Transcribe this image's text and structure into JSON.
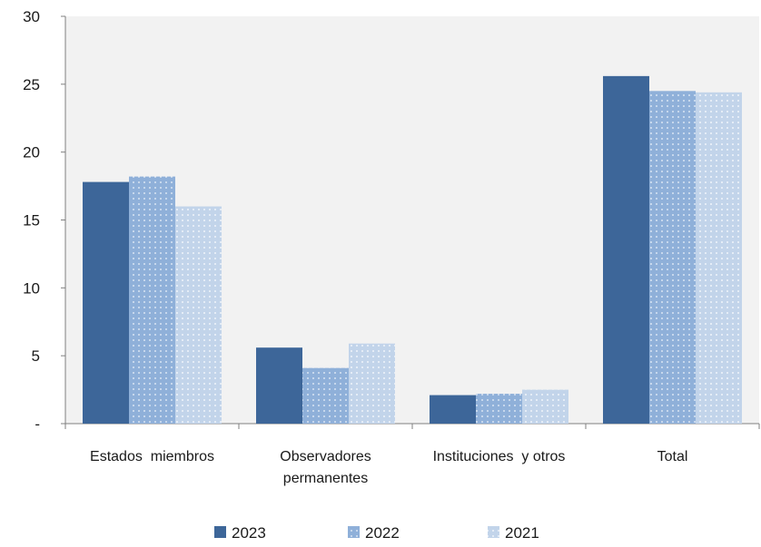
{
  "chart_data": {
    "type": "bar",
    "title": "",
    "xlabel": "",
    "ylabel": "",
    "categories": [
      [
        "Estados  miembros"
      ],
      [
        "Observadores",
        "permanentes"
      ],
      [
        "Instituciones  y otros"
      ],
      [
        "Total"
      ]
    ],
    "series": [
      {
        "name": "2023",
        "values": [
          17.8,
          5.6,
          2.1,
          25.6
        ],
        "color": "#3d6699",
        "pattern": "solid"
      },
      {
        "name": "2022",
        "values": [
          18.2,
          4.1,
          2.2,
          24.5
        ],
        "color": "#8fb0d9",
        "pattern": "dots"
      },
      {
        "name": "2021",
        "values": [
          16.0,
          5.9,
          2.5,
          24.4
        ],
        "color": "#c2d4ea",
        "pattern": "dots-light"
      }
    ],
    "ylim": [
      0,
      30
    ],
    "yticks": [
      {
        "value": 0,
        "label": "-"
      },
      {
        "value": 5,
        "label": "5"
      },
      {
        "value": 10,
        "label": "10"
      },
      {
        "value": 15,
        "label": "15"
      },
      {
        "value": 20,
        "label": "20"
      },
      {
        "value": 25,
        "label": "25"
      },
      {
        "value": 30,
        "label": "30"
      }
    ],
    "plot_background": "#f2f2f2",
    "grid": false,
    "legend_position": "bottom"
  }
}
